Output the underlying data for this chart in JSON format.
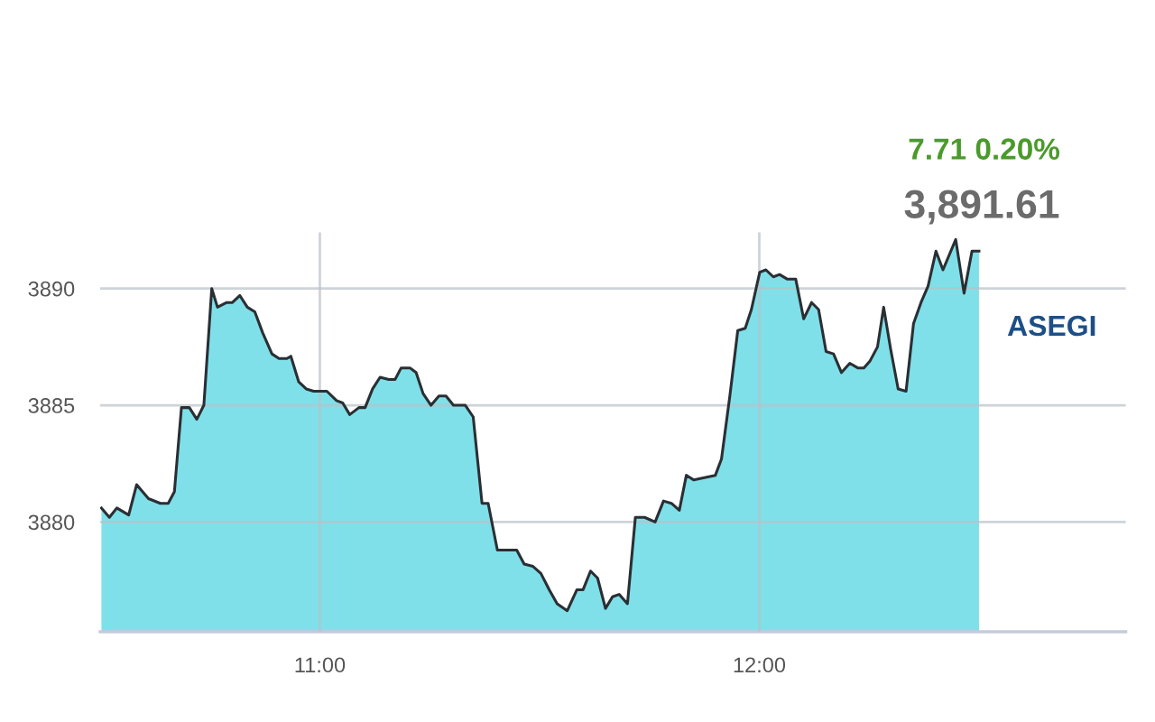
{
  "chart_data": {
    "type": "area",
    "annotations": [
      "7.71 0.20%",
      "3,891.61"
    ],
    "x": [
      10.503,
      10.521,
      10.538,
      10.565,
      10.583,
      10.61,
      10.637,
      10.655,
      10.669,
      10.685,
      10.703,
      10.72,
      10.736,
      10.754,
      10.767,
      10.788,
      10.801,
      10.818,
      10.835,
      10.852,
      10.87,
      10.891,
      10.907,
      10.925,
      10.934,
      10.952,
      10.969,
      10.986,
      11.016,
      11.038,
      11.052,
      11.068,
      11.089,
      11.103,
      11.12,
      11.137,
      11.157,
      11.171,
      11.185,
      11.205,
      11.219,
      11.235,
      11.253,
      11.271,
      11.287,
      11.304,
      11.331,
      11.349,
      11.369,
      11.383,
      11.404,
      11.448,
      11.465,
      11.485,
      11.503,
      11.522,
      11.54,
      11.563,
      11.585,
      11.599,
      11.616,
      11.632,
      11.65,
      11.666,
      11.681,
      11.7,
      11.718,
      11.739,
      11.763,
      11.782,
      11.8,
      11.818,
      11.834,
      11.851,
      11.875,
      11.9,
      11.914,
      11.933,
      11.951,
      11.968,
      11.982,
      12.001,
      12.015,
      12.032,
      12.046,
      12.064,
      12.083,
      12.101,
      12.119,
      12.135,
      12.152,
      12.169,
      12.187,
      12.206,
      12.224,
      12.238,
      12.252,
      12.269,
      12.283,
      12.299,
      12.316,
      12.334,
      12.351,
      12.368,
      12.384,
      12.402,
      12.418,
      12.447,
      12.466,
      12.484,
      12.5
    ],
    "series": [
      {
        "name": "ASEGI",
        "color": "#7fe0e9",
        "values": [
          3880.6,
          3880.2,
          3880.6,
          3880.3,
          3881.6,
          3881.0,
          3880.8,
          3880.8,
          3881.3,
          3884.9,
          3884.9,
          3884.4,
          3885.0,
          3890.0,
          3889.2,
          3889.4,
          3889.4,
          3889.7,
          3889.2,
          3889.0,
          3888.1,
          3887.2,
          3887.0,
          3887.0,
          3887.1,
          3886.0,
          3885.7,
          3885.6,
          3885.6,
          3885.2,
          3885.1,
          3884.6,
          3884.9,
          3884.9,
          3885.7,
          3886.2,
          3886.1,
          3886.1,
          3886.6,
          3886.6,
          3886.4,
          3885.5,
          3885.0,
          3885.4,
          3885.4,
          3885.0,
          3885.0,
          3884.5,
          3880.8,
          3880.8,
          3878.8,
          3878.8,
          3878.2,
          3878.1,
          3877.8,
          3877.1,
          3876.5,
          3876.2,
          3877.1,
          3877.1,
          3877.9,
          3877.6,
          3876.3,
          3876.8,
          3876.9,
          3876.5,
          3880.2,
          3880.2,
          3880.0,
          3880.9,
          3880.8,
          3880.5,
          3882.0,
          3881.8,
          3881.9,
          3882.0,
          3882.7,
          3885.4,
          3888.2,
          3888.3,
          3889.1,
          3890.7,
          3890.8,
          3890.5,
          3890.6,
          3890.4,
          3890.4,
          3888.7,
          3889.4,
          3889.1,
          3887.3,
          3887.2,
          3886.4,
          3886.8,
          3886.6,
          3886.6,
          3886.9,
          3887.5,
          3889.2,
          3887.4,
          3885.7,
          3885.6,
          3888.5,
          3889.4,
          3890.1,
          3891.6,
          3890.8,
          3892.1,
          3889.8,
          3891.6,
          3891.6
        ]
      }
    ],
    "xlim": [
      10.5,
      12.834
    ],
    "ylim": [
      3875.3,
      3892.4
    ],
    "xticks": [
      {
        "value": 11,
        "label": "11:00"
      },
      {
        "value": 12,
        "label": "12:00"
      }
    ],
    "yticks": [
      3880,
      3885,
      3890
    ],
    "grid": true
  }
}
